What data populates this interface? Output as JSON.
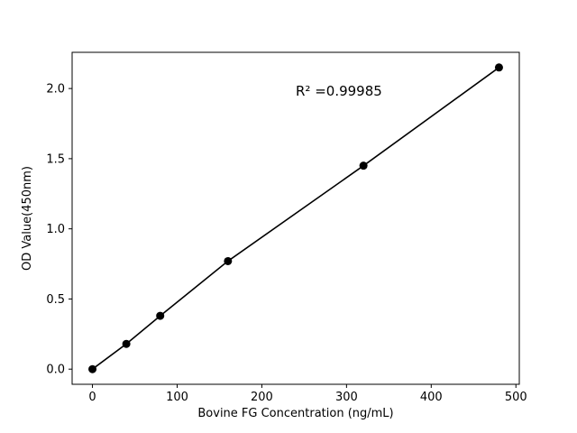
{
  "chart_data": {
    "type": "scatter",
    "x": [
      0,
      40,
      80,
      160,
      320,
      480
    ],
    "y": [
      0.0,
      0.18,
      0.38,
      0.77,
      1.45,
      2.15
    ],
    "xlabel": "Bovine FG Concentration (ng/mL)",
    "ylabel": "OD Value(450nm)",
    "xticks": [
      0,
      100,
      200,
      300,
      400,
      500
    ],
    "xtick_labels": [
      "0",
      "100",
      "200",
      "300",
      "400",
      "500"
    ],
    "yticks": [
      0.0,
      0.5,
      1.0,
      1.5,
      2.0
    ],
    "ytick_labels": [
      "0.0",
      "0.5",
      "1.0",
      "1.5",
      "2.0"
    ],
    "xlim": [
      -24,
      504
    ],
    "ylim": [
      -0.108,
      2.258
    ],
    "grid": false,
    "legend": null,
    "title": "",
    "annotation": {
      "text": "R² =0.99985",
      "x": 240,
      "y": 1.95
    },
    "line_color": "#000000",
    "marker_color": "#000000",
    "background_color": "#ffffff",
    "marker_style": "filled-circle",
    "connect_points": true
  }
}
